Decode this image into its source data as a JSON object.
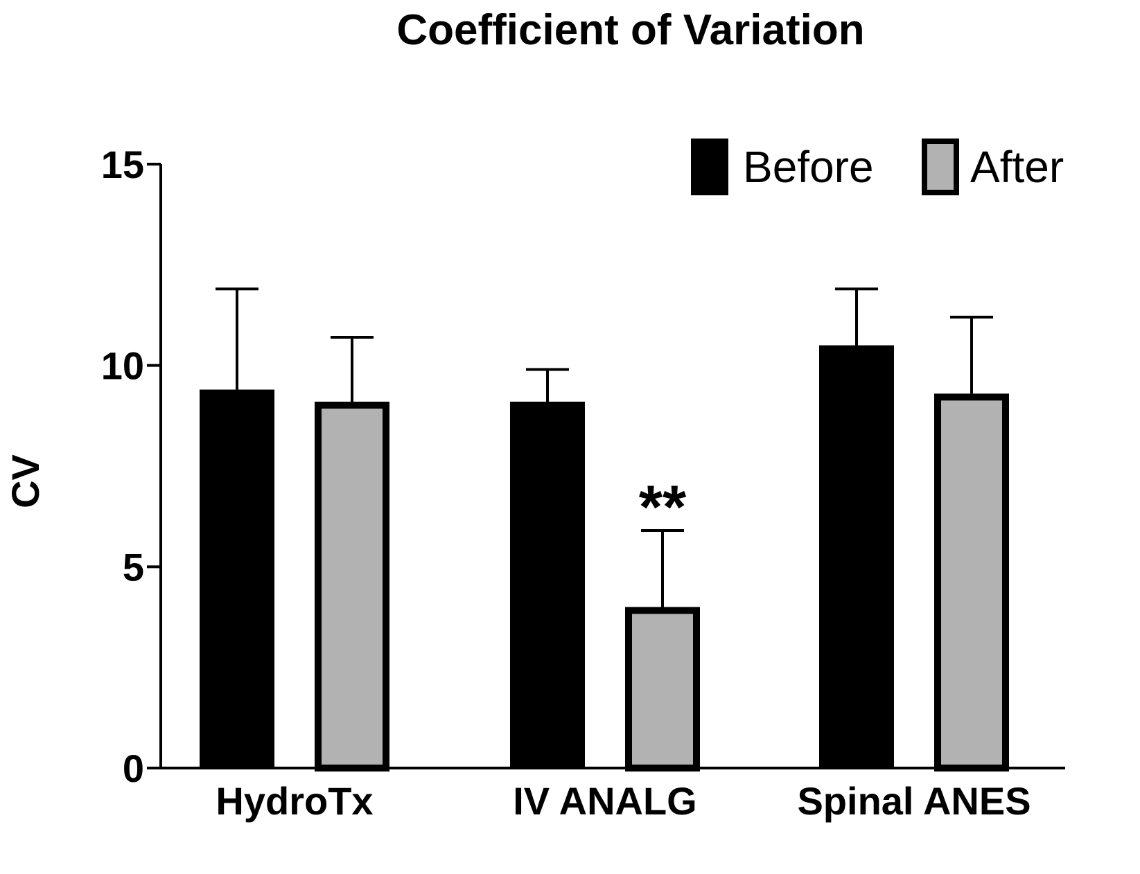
{
  "chart_data": {
    "type": "bar",
    "title": "Coefficient of Variation",
    "xlabel": "",
    "ylabel": "CV",
    "ylim": [
      0,
      15
    ],
    "yticks": [
      "0",
      "5",
      "10",
      "15"
    ],
    "categories": [
      "HydroTx",
      "IV ANALG",
      "Spinal ANES"
    ],
    "series": [
      {
        "name": "Before",
        "color": "#000000",
        "values": [
          9.4,
          9.1,
          10.5
        ],
        "errors": [
          2.5,
          0.8,
          1.4
        ]
      },
      {
        "name": "After",
        "color": "#b2b2b2",
        "values": [
          9.1,
          4.0,
          9.3
        ],
        "errors": [
          1.6,
          1.9,
          1.9
        ]
      }
    ],
    "legend_position": "top-right",
    "annotations": [
      {
        "text": "**",
        "category": "IV ANALG",
        "series": "After"
      }
    ]
  }
}
